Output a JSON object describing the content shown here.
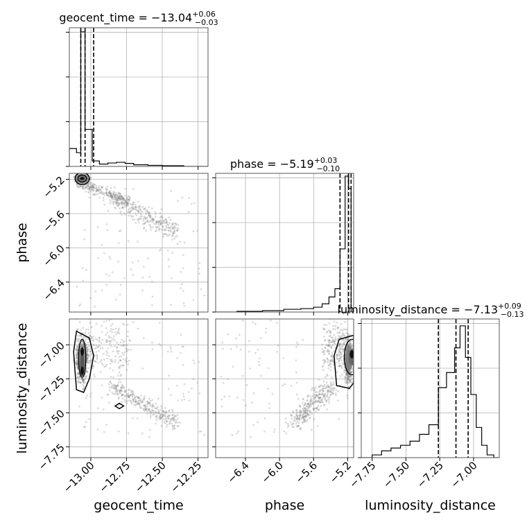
{
  "chart_data": {
    "type": "corner",
    "parameters": [
      "geocent_time",
      "phase",
      "luminosity_distance"
    ],
    "titles": [
      {
        "base": "geocent_time = −13.04",
        "sup": "+0.06",
        "sub": "−0.03"
      },
      {
        "base": "phase = −5.19",
        "sup": "+0.03",
        "sub": "−0.10"
      },
      {
        "base": "luminosity_distance = −7.13",
        "sup": "+0.09",
        "sub": "−0.13"
      }
    ],
    "axis_labels": {
      "x": [
        "geocent_time",
        "phase",
        "luminosity_distance"
      ],
      "y": [
        "phase",
        "luminosity_distance"
      ]
    },
    "ranges": {
      "geocent_time": [
        -13.15,
        -12.18
      ],
      "phase": [
        -6.75,
        -5.13
      ],
      "luminosity_distance": [
        -7.83,
        -6.81
      ]
    },
    "ticks": {
      "geocent_time": [
        -13.0,
        -12.75,
        -12.5,
        -12.25
      ],
      "phase": [
        -6.4,
        -6.0,
        -5.6,
        -5.2
      ],
      "luminosity_distance": [
        -7.75,
        -7.5,
        -7.25,
        -7.0
      ]
    },
    "tick_labels": {
      "geocent_time": [
        "−13.00",
        "−12.75",
        "−12.50",
        "−12.25"
      ],
      "phase": [
        "−6.4",
        "−6.0",
        "−5.6",
        "−5.2"
      ],
      "luminosity_distance": [
        "−7.75",
        "−7.50",
        "−7.25",
        "−7.00"
      ]
    },
    "quantiles": {
      "geocent_time": [
        -13.07,
        -13.04,
        -12.98
      ],
      "phase": [
        -5.29,
        -5.19,
        -5.16
      ],
      "luminosity_distance": [
        -7.26,
        -7.13,
        -7.04
      ]
    },
    "histograms": {
      "geocent_time": {
        "edges": [
          -13.15,
          -13.1,
          -13.07,
          -13.04,
          -12.99,
          -12.94,
          -12.88,
          -12.82,
          -12.76,
          -12.7,
          -12.6,
          -12.5,
          -12.35,
          -12.18
        ],
        "counts": [
          0.13,
          0.1,
          0.98,
          0.27,
          0.04,
          0.017,
          0.025,
          0.03,
          0.022,
          0.012,
          0.008,
          0.005,
          0.0
        ]
      },
      "phase": {
        "edges": [
          -6.75,
          -6.5,
          -6.2,
          -5.95,
          -5.75,
          -5.6,
          -5.5,
          -5.42,
          -5.35,
          -5.29,
          -5.23,
          -5.19,
          -5.16,
          -5.13
        ],
        "counts": [
          0.0,
          0.005,
          0.01,
          0.02,
          0.025,
          0.035,
          0.06,
          0.11,
          0.17,
          0.46,
          0.99,
          0.9,
          0.0
        ]
      },
      "luminosity_distance": {
        "edges": [
          -7.83,
          -7.75,
          -7.68,
          -7.61,
          -7.54,
          -7.47,
          -7.4,
          -7.33,
          -7.26,
          -7.2,
          -7.14,
          -7.1,
          -7.06,
          -7.02,
          -6.98,
          -6.94,
          -6.9,
          -6.85,
          -6.81
        ],
        "counts": [
          0.0,
          0.02,
          0.05,
          0.07,
          0.09,
          0.12,
          0.17,
          0.24,
          0.51,
          0.62,
          0.8,
          0.96,
          0.73,
          0.46,
          0.22,
          0.09,
          0.02,
          0.0
        ]
      }
    },
    "grid": true,
    "scatter_color": "#7f7f7f",
    "line_color": "#000000"
  }
}
